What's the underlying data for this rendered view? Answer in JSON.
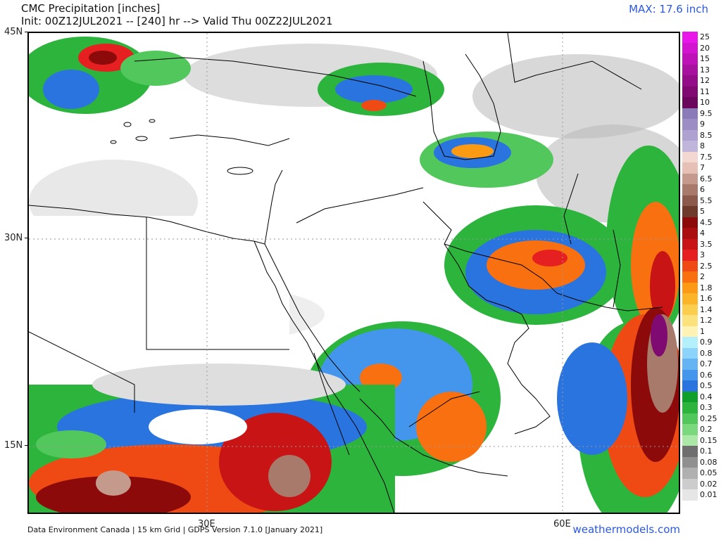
{
  "header": {
    "title": "CMC Precipitation [inches]",
    "subtitle": "Init: 00Z12JUL2021 -- [240] hr --> Valid Thu 00Z22JUL2021",
    "max_label": "MAX: 17.6 inch"
  },
  "axes": {
    "lat_labels": [
      "45N",
      "30N",
      "15N"
    ],
    "lon_labels": [
      "30E",
      "60E"
    ]
  },
  "footer": {
    "credits": "Data Environment Canada | 15 km Grid | GDPS Version 7.1.0 [January 2021]",
    "website": "weathermodels.com"
  },
  "legend": {
    "levels": [
      {
        "label": "25",
        "color": "#e816e8"
      },
      {
        "label": "20",
        "color": "#d214d0"
      },
      {
        "label": "15",
        "color": "#be12b8"
      },
      {
        "label": "13",
        "color": "#a8109e"
      },
      {
        "label": "12",
        "color": "#930d88"
      },
      {
        "label": "11",
        "color": "#7f0a72"
      },
      {
        "label": "10",
        "color": "#6a075c"
      },
      {
        "label": "9.5",
        "color": "#8a7ab8"
      },
      {
        "label": "9",
        "color": "#9c8ec4"
      },
      {
        "label": "8.5",
        "color": "#aea2d0"
      },
      {
        "label": "8",
        "color": "#c0b6dc"
      },
      {
        "label": "7.5",
        "color": "#f2d8d0"
      },
      {
        "label": "7",
        "color": "#e6c0b4"
      },
      {
        "label": "6.5",
        "color": "#c49a8c"
      },
      {
        "label": "6",
        "color": "#a87a6c"
      },
      {
        "label": "5.5",
        "color": "#8c5a4c"
      },
      {
        "label": "5",
        "color": "#6e3a2c"
      },
      {
        "label": "4.5",
        "color": "#8c0a0a"
      },
      {
        "label": "4",
        "color": "#aa0e0e"
      },
      {
        "label": "3.5",
        "color": "#c81414"
      },
      {
        "label": "3",
        "color": "#e62020"
      },
      {
        "label": "2.5",
        "color": "#f04a14"
      },
      {
        "label": "2",
        "color": "#f87010"
      },
      {
        "label": "1.8",
        "color": "#fc9a14"
      },
      {
        "label": "1.6",
        "color": "#fcb428"
      },
      {
        "label": "1.4",
        "color": "#fcce50"
      },
      {
        "label": "1.2",
        "color": "#fce27c"
      },
      {
        "label": "1",
        "color": "#fef2b4"
      },
      {
        "label": "0.9",
        "color": "#b4f0fc"
      },
      {
        "label": "0.8",
        "color": "#8cd4fc"
      },
      {
        "label": "0.7",
        "color": "#64b4f4"
      },
      {
        "label": "0.6",
        "color": "#4496ec"
      },
      {
        "label": "0.5",
        "color": "#2a74e0"
      },
      {
        "label": "0.4",
        "color": "#0ea028"
      },
      {
        "label": "0.3",
        "color": "#2cb43c"
      },
      {
        "label": "0.25",
        "color": "#52c85c"
      },
      {
        "label": "0.2",
        "color": "#7cd87c"
      },
      {
        "label": "0.15",
        "color": "#ace8a8"
      },
      {
        "label": "0.1",
        "color": "#6e6e6e"
      },
      {
        "label": "0.08",
        "color": "#909090"
      },
      {
        "label": "0.05",
        "color": "#b0b0b0"
      },
      {
        "label": "0.02",
        "color": "#cccccc"
      },
      {
        "label": "0.01",
        "color": "#e6e6e6"
      }
    ]
  }
}
